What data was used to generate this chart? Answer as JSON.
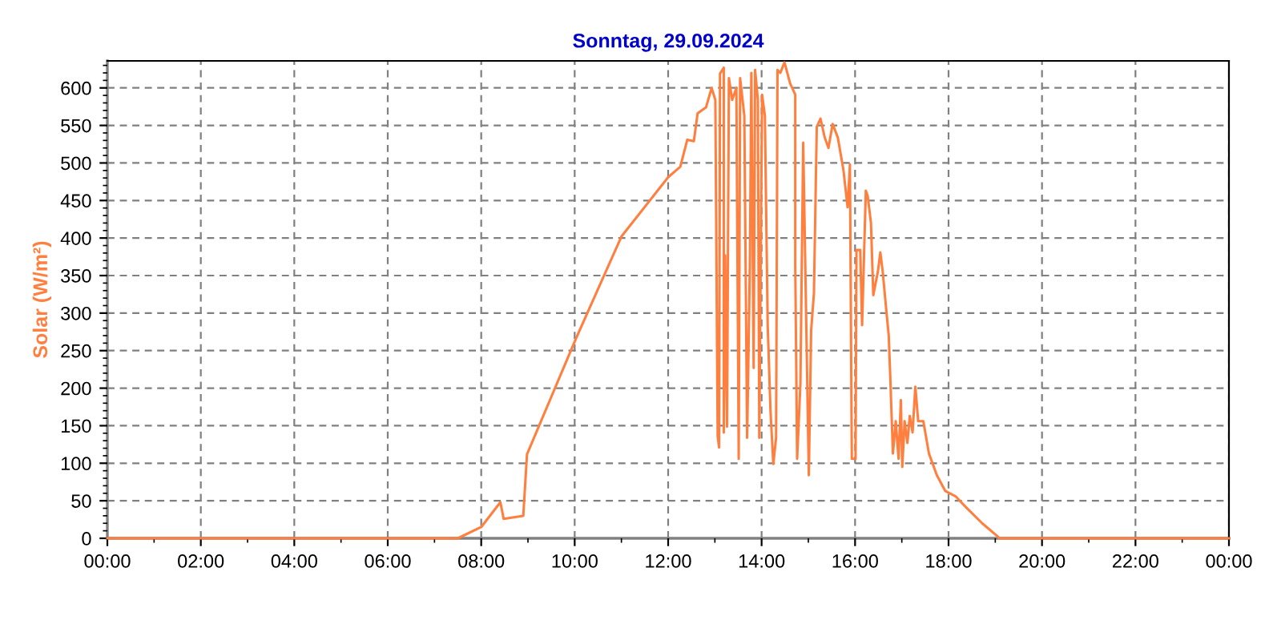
{
  "chart_data": {
    "type": "line",
    "title": "Sonntag, 29.09.2024",
    "ylabel": "Solar (W/m²)",
    "xlim": [
      0,
      24
    ],
    "ylim": [
      0,
      636
    ],
    "xticks": [
      {
        "value": 0,
        "label": "00:00"
      },
      {
        "value": 2,
        "label": "02:00"
      },
      {
        "value": 4,
        "label": "04:00"
      },
      {
        "value": 6,
        "label": "06:00"
      },
      {
        "value": 8,
        "label": "08:00"
      },
      {
        "value": 10,
        "label": "10:00"
      },
      {
        "value": 12,
        "label": "12:00"
      },
      {
        "value": 14,
        "label": "14:00"
      },
      {
        "value": 16,
        "label": "16:00"
      },
      {
        "value": 18,
        "label": "18:00"
      },
      {
        "value": 20,
        "label": "20:00"
      },
      {
        "value": 22,
        "label": "22:00"
      },
      {
        "value": 24,
        "label": "00:00"
      }
    ],
    "yticks": [
      0,
      50,
      100,
      150,
      200,
      250,
      300,
      350,
      400,
      450,
      500,
      550,
      600
    ],
    "grid": true,
    "legend": false,
    "marker": "none",
    "line_style": "solid",
    "series": [
      {
        "color": "#ff7f3f",
        "x": [
          0,
          7.5,
          8.0,
          8.41,
          8.48,
          8.9,
          8.98,
          10.02,
          11.0,
          12.0,
          12.26,
          12.41,
          12.55,
          12.63,
          12.81,
          12.93,
          13.01,
          13.06,
          13.09,
          13.11,
          13.19,
          13.19,
          13.22,
          13.26,
          13.3,
          13.37,
          13.46,
          13.51,
          13.54,
          13.63,
          13.69,
          13.75,
          13.78,
          13.83,
          13.86,
          13.92,
          13.95,
          14.01,
          14.07,
          14.13,
          14.19,
          14.25,
          14.31,
          14.34,
          14.4,
          14.49,
          14.61,
          14.72,
          14.72,
          14.76,
          14.83,
          14.89,
          14.95,
          15.01,
          15.06,
          15.12,
          15.18,
          15.26,
          15.35,
          15.43,
          15.52,
          15.63,
          15.75,
          15.84,
          15.89,
          15.93,
          16.01,
          16.03,
          16.11,
          16.15,
          16.23,
          16.27,
          16.34,
          16.39,
          16.49,
          16.54,
          16.59,
          16.66,
          16.72,
          16.75,
          16.81,
          16.87,
          16.93,
          16.98,
          17.01,
          17.06,
          17.12,
          17.17,
          17.23,
          17.29,
          17.35,
          17.46,
          17.58,
          17.75,
          17.93,
          18.15,
          18.38,
          18.72,
          19.06,
          19.08,
          24
        ],
        "values": [
          0,
          0,
          15,
          48,
          26,
          30,
          112,
          265,
          402,
          481,
          495,
          531,
          529,
          566,
          574,
          600,
          584,
          136,
          121,
          619,
          627,
          141,
          377,
          149,
          613,
          584,
          600,
          106,
          613,
          563,
          134,
          370,
          620,
          227,
          624,
          584,
          134,
          591,
          563,
          284,
          170,
          99,
          134,
          624,
          620,
          634,
          606,
          591,
          363,
          106,
          206,
          527,
          306,
          84,
          277,
          327,
          548,
          559,
          534,
          520,
          552,
          534,
          491,
          441,
          498,
          106,
          106,
          384,
          384,
          284,
          463,
          456,
          420,
          324,
          356,
          381,
          356,
          309,
          270,
          220,
          113,
          156,
          106,
          184,
          95,
          156,
          127,
          163,
          141,
          202,
          156,
          156,
          113,
          84,
          63,
          56,
          41,
          20,
          2,
          0,
          0
        ]
      }
    ]
  }
}
